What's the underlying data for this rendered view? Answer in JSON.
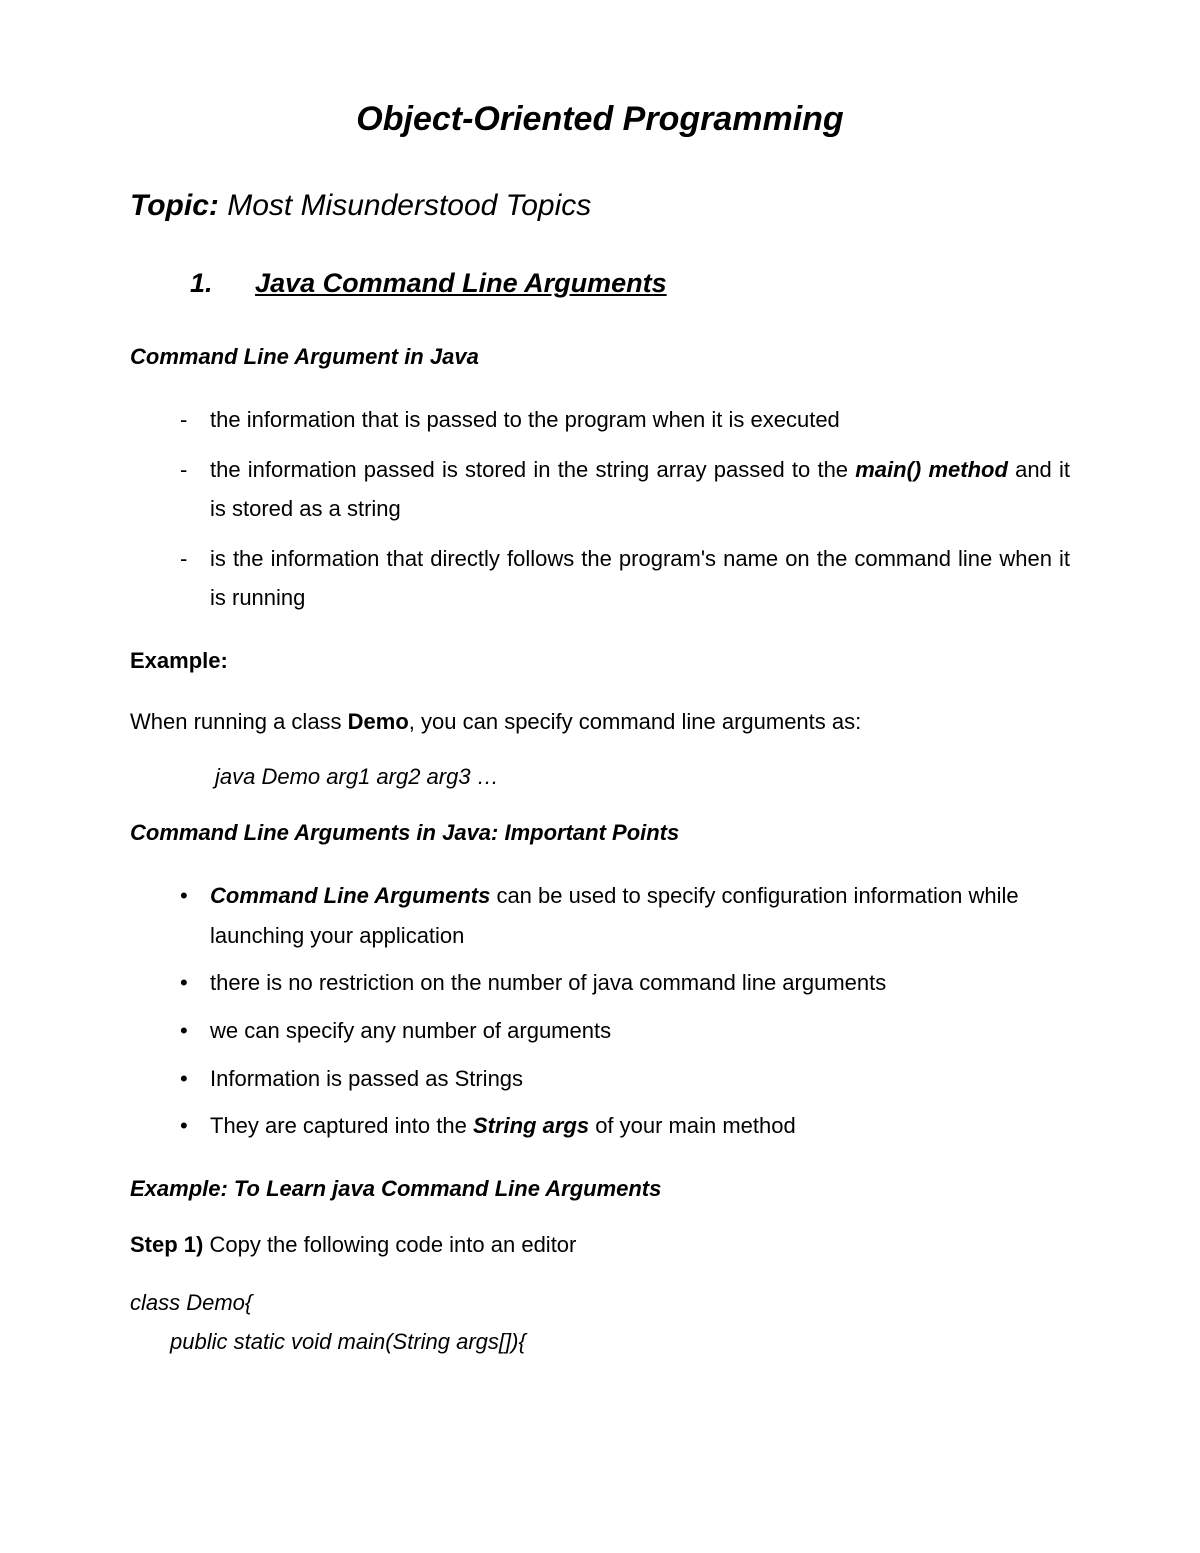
{
  "title": "Object-Oriented Programming",
  "topic": {
    "label": "Topic:",
    "text": "Most Misunderstood Topics"
  },
  "section": {
    "number": "1.",
    "title": "Java Command Line Arguments"
  },
  "subheading1": "Command Line Argument in Java",
  "dash_items": {
    "item1": "the information that is passed to the program when it is executed",
    "item2_prefix": "the information passed is stored in the string array passed to the ",
    "item2_bold": "main() method",
    "item2_suffix": " and it is stored as a string",
    "item3_prefix": "is the information that directly follows the program's name on the ",
    "item3_suffix": "command line when it is running"
  },
  "example_label": "Example:",
  "example_text_prefix": "When running a class ",
  "example_text_bold": "Demo",
  "example_text_suffix": ", you can specify command line arguments as:",
  "example_code": "java Demo arg1 arg2 arg3 …",
  "subheading2": "Command Line Arguments in Java: Important Points",
  "bullet_items": {
    "item1_bold": "Command Line Arguments",
    "item1_suffix": " can be used to specify configuration information while launching your application",
    "item2": "there is no restriction on the number of java command line arguments",
    "item3": "we can specify any number of arguments",
    "item4": "Information is passed as Strings",
    "item5_prefix": "They are captured into the ",
    "item5_bold": "String args",
    "item5_suffix": " of your main method"
  },
  "subheading3": "Example: To Learn java Command Line Arguments",
  "step1_label": "Step 1)",
  "step1_text": " Copy the following code into an editor",
  "code": {
    "line1": "class Demo{",
    "line2": "public static void main(String args[]){"
  }
}
